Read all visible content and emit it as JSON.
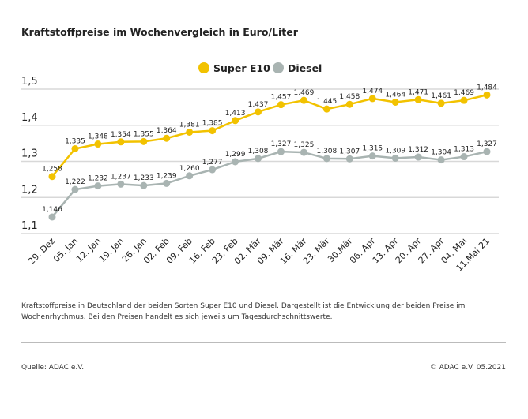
{
  "title": "Kraftstoffpreise im Wochenvergleich in Euro/Liter",
  "note": "Kraftstoffpreise in Deutschland der beiden Sorten Super E10 und Diesel. Dargestellt ist die Entwicklung der beiden Preise im Wochenrhythmus. Bei den Preisen handelt es sich jeweils um Tagesdurchschnittswerte.",
  "source": "Quelle: ADAC e.V.",
  "copyright": "© ADAC e.V. 05.2021",
  "chart_data": {
    "type": "line",
    "title": "Kraftstoffpreise im Wochenvergleich in Euro/Liter",
    "categories": [
      "29. Dez",
      "05. Jan",
      "12. Jan",
      "19. Jan",
      "26. Jan",
      "02. Feb",
      "09. Feb",
      "16. Feb",
      "23. Feb",
      "02. Mär",
      "09. Mär",
      "16. Mär",
      "23. Mär",
      "30.Mär",
      "06. Apr",
      "13. Apr",
      "20. Apr",
      "27. Apr",
      "04. Mai",
      "11.Mai 21"
    ],
    "yticks": [
      "1,1",
      "1,2",
      "1,3",
      "1,4",
      "1,5"
    ],
    "ylim": [
      1.1,
      1.5
    ],
    "grid": true,
    "legend": "top-center",
    "series": [
      {
        "name": "Super E10",
        "color": "#f2c200",
        "values": [
          1.258,
          1.335,
          1.348,
          1.354,
          1.355,
          1.364,
          1.381,
          1.385,
          1.413,
          1.437,
          1.457,
          1.469,
          1.445,
          1.458,
          1.474,
          1.464,
          1.471,
          1.461,
          1.469,
          1.484
        ]
      },
      {
        "name": "Diesel",
        "color": "#a9b4b2",
        "values": [
          1.146,
          1.222,
          1.232,
          1.237,
          1.233,
          1.239,
          1.26,
          1.277,
          1.299,
          1.308,
          1.327,
          1.325,
          1.308,
          1.307,
          1.315,
          1.309,
          1.312,
          1.304,
          1.313,
          1.327
        ]
      }
    ]
  }
}
